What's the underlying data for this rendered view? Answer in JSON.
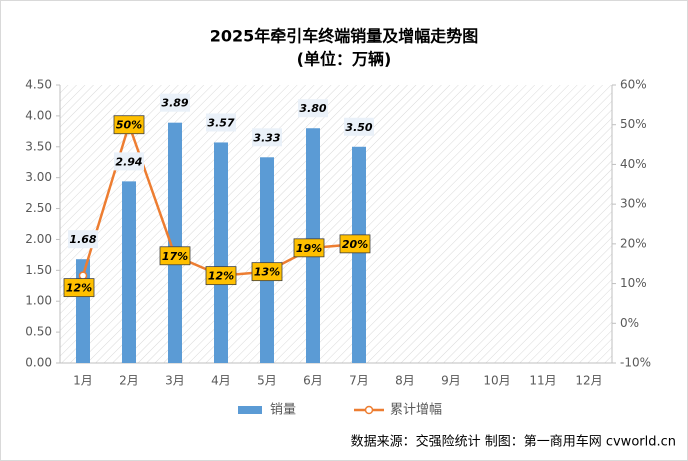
{
  "chart_data": {
    "type": "bar",
    "title": "2025年牵引车终端销量及增幅走势图",
    "subtitle": "(单位：万辆)",
    "source": "数据来源：交强险统计   制图：第一商用车网 cvworld.cn",
    "categories": [
      "1月",
      "2月",
      "3月",
      "4月",
      "5月",
      "6月",
      "7月",
      "8月",
      "9月",
      "10月",
      "11月",
      "12月"
    ],
    "series": [
      {
        "name": "销量",
        "type": "bar",
        "color": "#5b9bd5",
        "values": [
          1.68,
          2.94,
          3.89,
          3.57,
          3.33,
          3.8,
          3.5,
          null,
          null,
          null,
          null,
          null
        ],
        "value_labels": [
          "1.68",
          "2.94",
          "3.89",
          "3.57",
          "3.33",
          "3.80",
          "3.50",
          null,
          null,
          null,
          null,
          null
        ]
      },
      {
        "name": "累计增幅",
        "type": "line",
        "axis": "y2",
        "color": "#ed7d31",
        "values": [
          12,
          50,
          17,
          12,
          13,
          19,
          20,
          null,
          null,
          null,
          null,
          null
        ],
        "value_labels": [
          "12%",
          "50%",
          "17%",
          "12%",
          "13%",
          "19%",
          "20%",
          null,
          null,
          null,
          null,
          null
        ]
      }
    ],
    "ylim": [
      0,
      4.5
    ],
    "yticks": [
      {
        "value": 0,
        "label": "0.00"
      },
      {
        "value": 0.5,
        "label": "0.50"
      },
      {
        "value": 1,
        "label": "1.00"
      },
      {
        "value": 1.5,
        "label": "1.50"
      },
      {
        "value": 2,
        "label": "2.00"
      },
      {
        "value": 2.5,
        "label": "2.50"
      },
      {
        "value": 3,
        "label": "3.00"
      },
      {
        "value": 3.5,
        "label": "3.50"
      },
      {
        "value": 4,
        "label": "4.00"
      },
      {
        "value": 4.5,
        "label": "4.50"
      }
    ],
    "y2lim": [
      -10,
      60
    ],
    "y2ticks": [
      {
        "value": -10,
        "label": "-10%"
      },
      {
        "value": 0,
        "label": "0%"
      },
      {
        "value": 10,
        "label": "10%"
      },
      {
        "value": 20,
        "label": "20%"
      },
      {
        "value": 30,
        "label": "30%"
      },
      {
        "value": 40,
        "label": "40%"
      },
      {
        "value": 50,
        "label": "50%"
      },
      {
        "value": 60,
        "label": "60%"
      }
    ],
    "legend": "bottom"
  }
}
